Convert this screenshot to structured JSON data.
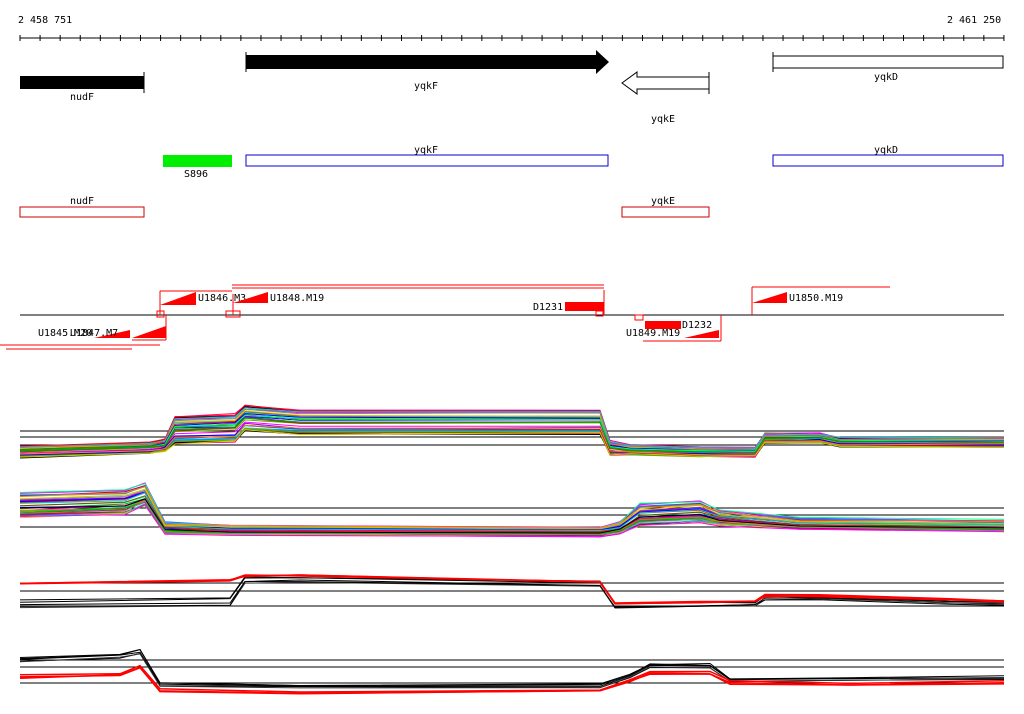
{
  "ruler": {
    "start_label": "2 458 751",
    "end_label": "2 461 250"
  },
  "genes_top": [
    {
      "name": "nudF",
      "strand": "+",
      "style": "filled"
    },
    {
      "name": "yqkF",
      "strand": "+",
      "style": "filled-arrow"
    },
    {
      "name": "yqkE",
      "strand": "-",
      "style": "open-arrow"
    },
    {
      "name": "yqkD",
      "strand": "+",
      "style": "open"
    }
  ],
  "annotation_blue": [
    {
      "name": "S896",
      "color": "#00ee00"
    },
    {
      "name": "yqkF",
      "color": "#0000cc"
    },
    {
      "name": "yqkD",
      "color": "#0000cc"
    }
  ],
  "annotation_red": [
    {
      "name": "nudF",
      "color": "#cc0000"
    },
    {
      "name": "yqkE",
      "color": "#cc0000"
    }
  ],
  "features": [
    {
      "name": "U1846.M3"
    },
    {
      "name": "U1848.M19"
    },
    {
      "name": "D1231"
    },
    {
      "name": "U1850.M19"
    },
    {
      "name": "U1845.M20"
    },
    {
      "name": "U1847.M7"
    },
    {
      "name": "U1849.M19"
    },
    {
      "name": "D1232"
    }
  ],
  "colors": {
    "feature_red": "#ff0000",
    "gene_black": "#000000",
    "blue_outline": "#0000cc",
    "green_segment": "#00ee00"
  }
}
